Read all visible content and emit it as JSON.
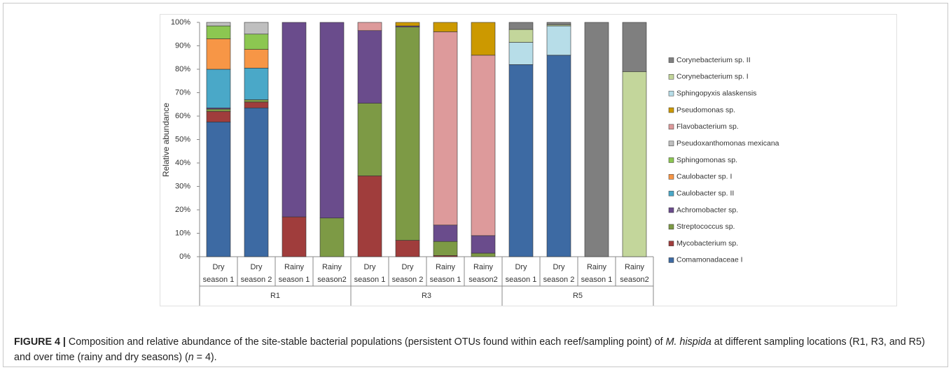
{
  "chart_data": {
    "type": "stacked_bar",
    "ylabel": "Relative abundance",
    "groups": [
      "R1",
      "R3",
      "R5"
    ],
    "categories": [
      "Dry season 1",
      "Dry season 2",
      "Rainy season 1",
      "Rainy season2",
      "Dry season 1",
      "Dry season 2",
      "Rainy season 1",
      "Rainy season2",
      "Dry season 1",
      "Dry season 2",
      "Rainy season 1",
      "Rainy season2"
    ],
    "ylim": [
      0,
      100
    ],
    "yticks": [
      {
        "value": 0,
        "label": "0%"
      },
      {
        "value": 10,
        "label": "10%"
      },
      {
        "value": 20,
        "label": "20%"
      },
      {
        "value": 30,
        "label": "30%"
      },
      {
        "value": 40,
        "label": "40%"
      },
      {
        "value": 50,
        "label": "50%"
      },
      {
        "value": 60,
        "label": "60%"
      },
      {
        "value": 70,
        "label": "70%"
      },
      {
        "value": 80,
        "label": "80%"
      },
      {
        "value": 90,
        "label": "90%"
      },
      {
        "value": 100,
        "label": "100%"
      }
    ],
    "grid": false,
    "legend": "right",
    "series": [
      {
        "name": "Comamonadaceae I",
        "color": "#3d6aa3",
        "values": [
          57.5,
          63.5,
          0,
          0,
          0,
          0,
          0,
          0,
          82,
          86,
          0,
          0
        ]
      },
      {
        "name": "Mycobacterium sp.",
        "color": "#a03d3c",
        "values": [
          4.5,
          2.5,
          17,
          0,
          34.5,
          7,
          0.5,
          0,
          0,
          0,
          0,
          0
        ]
      },
      {
        "name": "Streptococcus sp.",
        "color": "#7d9a45",
        "values": [
          1,
          1,
          0,
          16.5,
          31,
          91,
          6,
          1.5,
          0,
          0,
          0,
          0
        ]
      },
      {
        "name": "Achromobacter sp.",
        "color": "#6a4c8c",
        "values": [
          0.5,
          0,
          83,
          83.5,
          31,
          0.5,
          7,
          7.5,
          0,
          0,
          0,
          0
        ]
      },
      {
        "name": "Caulobacter sp. II",
        "color": "#4aa8c8",
        "values": [
          16.5,
          13.5,
          0,
          0,
          0,
          0,
          0,
          0,
          0,
          0,
          0,
          0
        ]
      },
      {
        "name": "Caulobacter sp. I",
        "color": "#f79646",
        "values": [
          13,
          8,
          0,
          0,
          0,
          0,
          0,
          0,
          0,
          0,
          0,
          0
        ]
      },
      {
        "name": "Sphingomonas sp.",
        "color": "#8cc751",
        "values": [
          5.5,
          6.5,
          0,
          0,
          0,
          0,
          0,
          0,
          0,
          0,
          0,
          0
        ]
      },
      {
        "name": "Pseudoxanthomonas mexicana",
        "color": "#bfbfbf",
        "values": [
          1.5,
          5,
          0,
          0,
          0,
          0,
          0,
          0,
          0,
          0,
          0,
          0
        ]
      },
      {
        "name": "Flavobacterium sp.",
        "color": "#dd9a9b",
        "values": [
          0,
          0,
          0,
          0,
          3.5,
          0,
          82.5,
          77,
          0,
          0,
          0,
          0
        ]
      },
      {
        "name": "Pseudomonas sp.",
        "color": "#cc9900",
        "values": [
          0,
          0,
          0,
          0,
          0,
          1.5,
          4,
          14,
          0,
          0,
          0,
          0
        ]
      },
      {
        "name": "Sphingopyxis alaskensis",
        "color": "#b7dde8",
        "values": [
          0,
          0,
          0,
          0,
          0,
          0,
          0,
          0,
          9.5,
          12.5,
          0,
          0
        ]
      },
      {
        "name": "Corynebacterium sp. I",
        "color": "#c3d69b",
        "values": [
          0,
          0,
          0,
          0,
          0,
          0,
          0,
          0,
          5.5,
          0.5,
          0,
          79
        ]
      },
      {
        "name": "Corynebacterium sp. II",
        "color": "#7f7f7f",
        "values": [
          0,
          0,
          0,
          0,
          0,
          0,
          0,
          0,
          3,
          1,
          100,
          21
        ]
      }
    ]
  },
  "caption": [
    {
      "text": "FIGURE 4 |",
      "bold": true
    },
    {
      "text": " Composition and relative abundance of the site-stable bacterial populations (persistent OTUs found within each reef/sampling point) of "
    },
    {
      "text": "M. hispida",
      "italic": true
    },
    {
      "text": " at different sampling locations (R1, R3, and R5) and over time (rainy and dry seasons) ("
    },
    {
      "text": "n",
      "italic": true
    },
    {
      "text": " = 4)."
    }
  ]
}
